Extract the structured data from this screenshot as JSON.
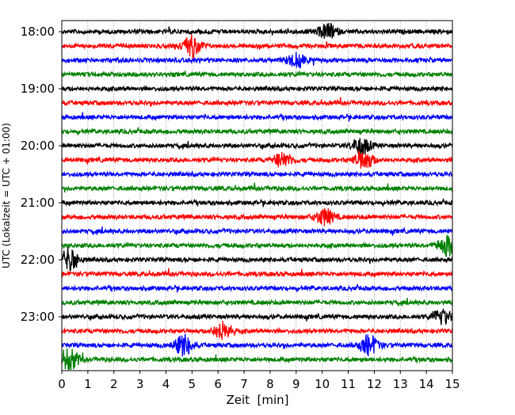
{
  "chart_data": {
    "type": "line",
    "title": "",
    "xlabel": "Zeit  [min]",
    "ylabel": "UTC (Lokalzeit = UTC + 01:00)",
    "xlim": [
      0,
      15
    ],
    "x_ticks": [
      "0",
      "1",
      "2",
      "3",
      "4",
      "5",
      "6",
      "7",
      "8",
      "9",
      "10",
      "11",
      "12",
      "13",
      "14",
      "15"
    ],
    "y_ticks": [
      "18:00",
      "19:00",
      "20:00",
      "21:00",
      "22:00",
      "23:00"
    ],
    "y_tick_trace_index": [
      0,
      4,
      8,
      12,
      16,
      20
    ],
    "trace_minutes": 15,
    "trace_count": 24,
    "start_time": "18:00",
    "colors": [
      "#000000",
      "#ff0000",
      "#0000ff",
      "#008000"
    ],
    "grid": "vertical dotted at each minute",
    "events": [
      {
        "trace": 0,
        "minute": 10.2,
        "amp": 1.3
      },
      {
        "trace": 1,
        "minute": 5.0,
        "amp": 2.0
      },
      {
        "trace": 2,
        "minute": 9.0,
        "amp": 1.2
      },
      {
        "trace": 8,
        "minute": 11.5,
        "amp": 1.5
      },
      {
        "trace": 9,
        "minute": 8.5,
        "amp": 1.3
      },
      {
        "trace": 9,
        "minute": 11.6,
        "amp": 1.6
      },
      {
        "trace": 13,
        "minute": 10.1,
        "amp": 1.4
      },
      {
        "trace": 15,
        "minute": 14.8,
        "amp": 1.8
      },
      {
        "trace": 16,
        "minute": 0.3,
        "amp": 2.0
      },
      {
        "trace": 20,
        "minute": 14.6,
        "amp": 1.4
      },
      {
        "trace": 21,
        "minute": 6.2,
        "amp": 1.5
      },
      {
        "trace": 22,
        "minute": 4.7,
        "amp": 1.8
      },
      {
        "trace": 22,
        "minute": 11.8,
        "amp": 1.8
      },
      {
        "trace": 23,
        "minute": 0.3,
        "amp": 1.8
      }
    ]
  }
}
